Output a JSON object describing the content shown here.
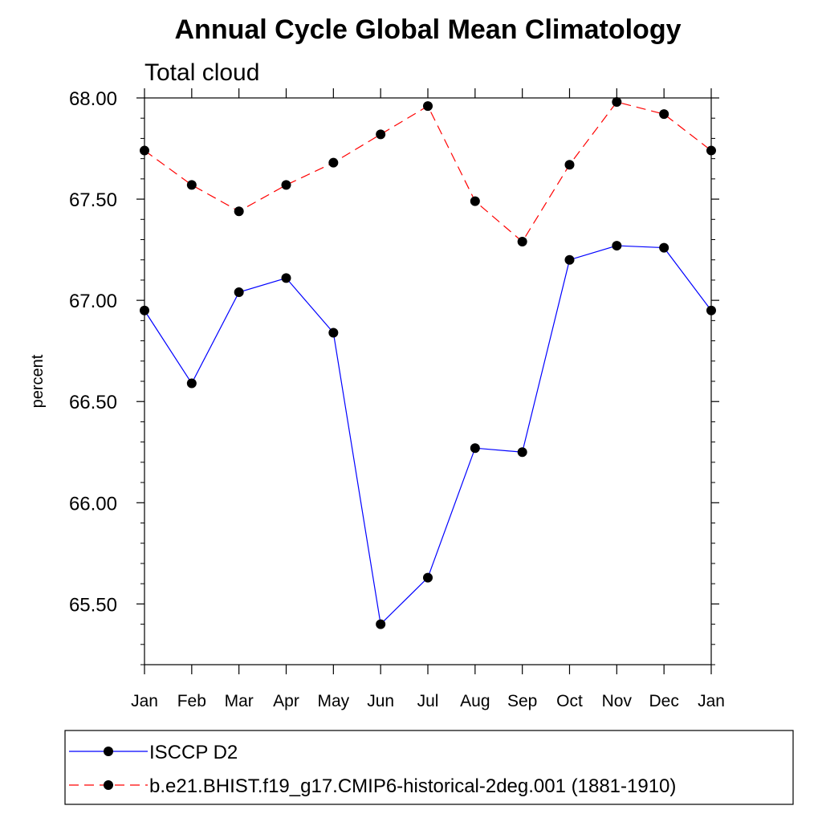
{
  "chart_data": {
    "type": "line",
    "title": "Annual Cycle Global Mean Climatology",
    "subtitle": "Total cloud",
    "xlabel": "",
    "ylabel": "percent",
    "categories": [
      "Jan",
      "Feb",
      "Mar",
      "Apr",
      "May",
      "Jun",
      "Jul",
      "Aug",
      "Sep",
      "Oct",
      "Nov",
      "Dec",
      "Jan"
    ],
    "ylim": [
      65.2,
      68.0
    ],
    "yticks": [
      65.5,
      66.0,
      66.5,
      67.0,
      67.5,
      68.0
    ],
    "ytick_labels": [
      "65.50",
      "66.00",
      "66.50",
      "67.00",
      "67.50",
      "68.00"
    ],
    "grid": false,
    "legend_position": "bottom",
    "series": [
      {
        "name": "ISCCP D2",
        "color": "#0000ff",
        "dash": "solid",
        "values": [
          66.95,
          66.59,
          67.04,
          67.11,
          66.84,
          65.4,
          65.63,
          66.27,
          66.25,
          67.2,
          67.27,
          67.26,
          66.95
        ]
      },
      {
        "name": "b.e21.BHIST.f19_g17.CMIP6-historical-2deg.001 (1881-1910)",
        "color": "#ff0000",
        "dash": "dashed",
        "values": [
          67.74,
          67.57,
          67.44,
          67.57,
          67.68,
          67.82,
          67.96,
          67.49,
          67.29,
          67.67,
          67.98,
          67.92,
          67.74
        ]
      }
    ]
  }
}
